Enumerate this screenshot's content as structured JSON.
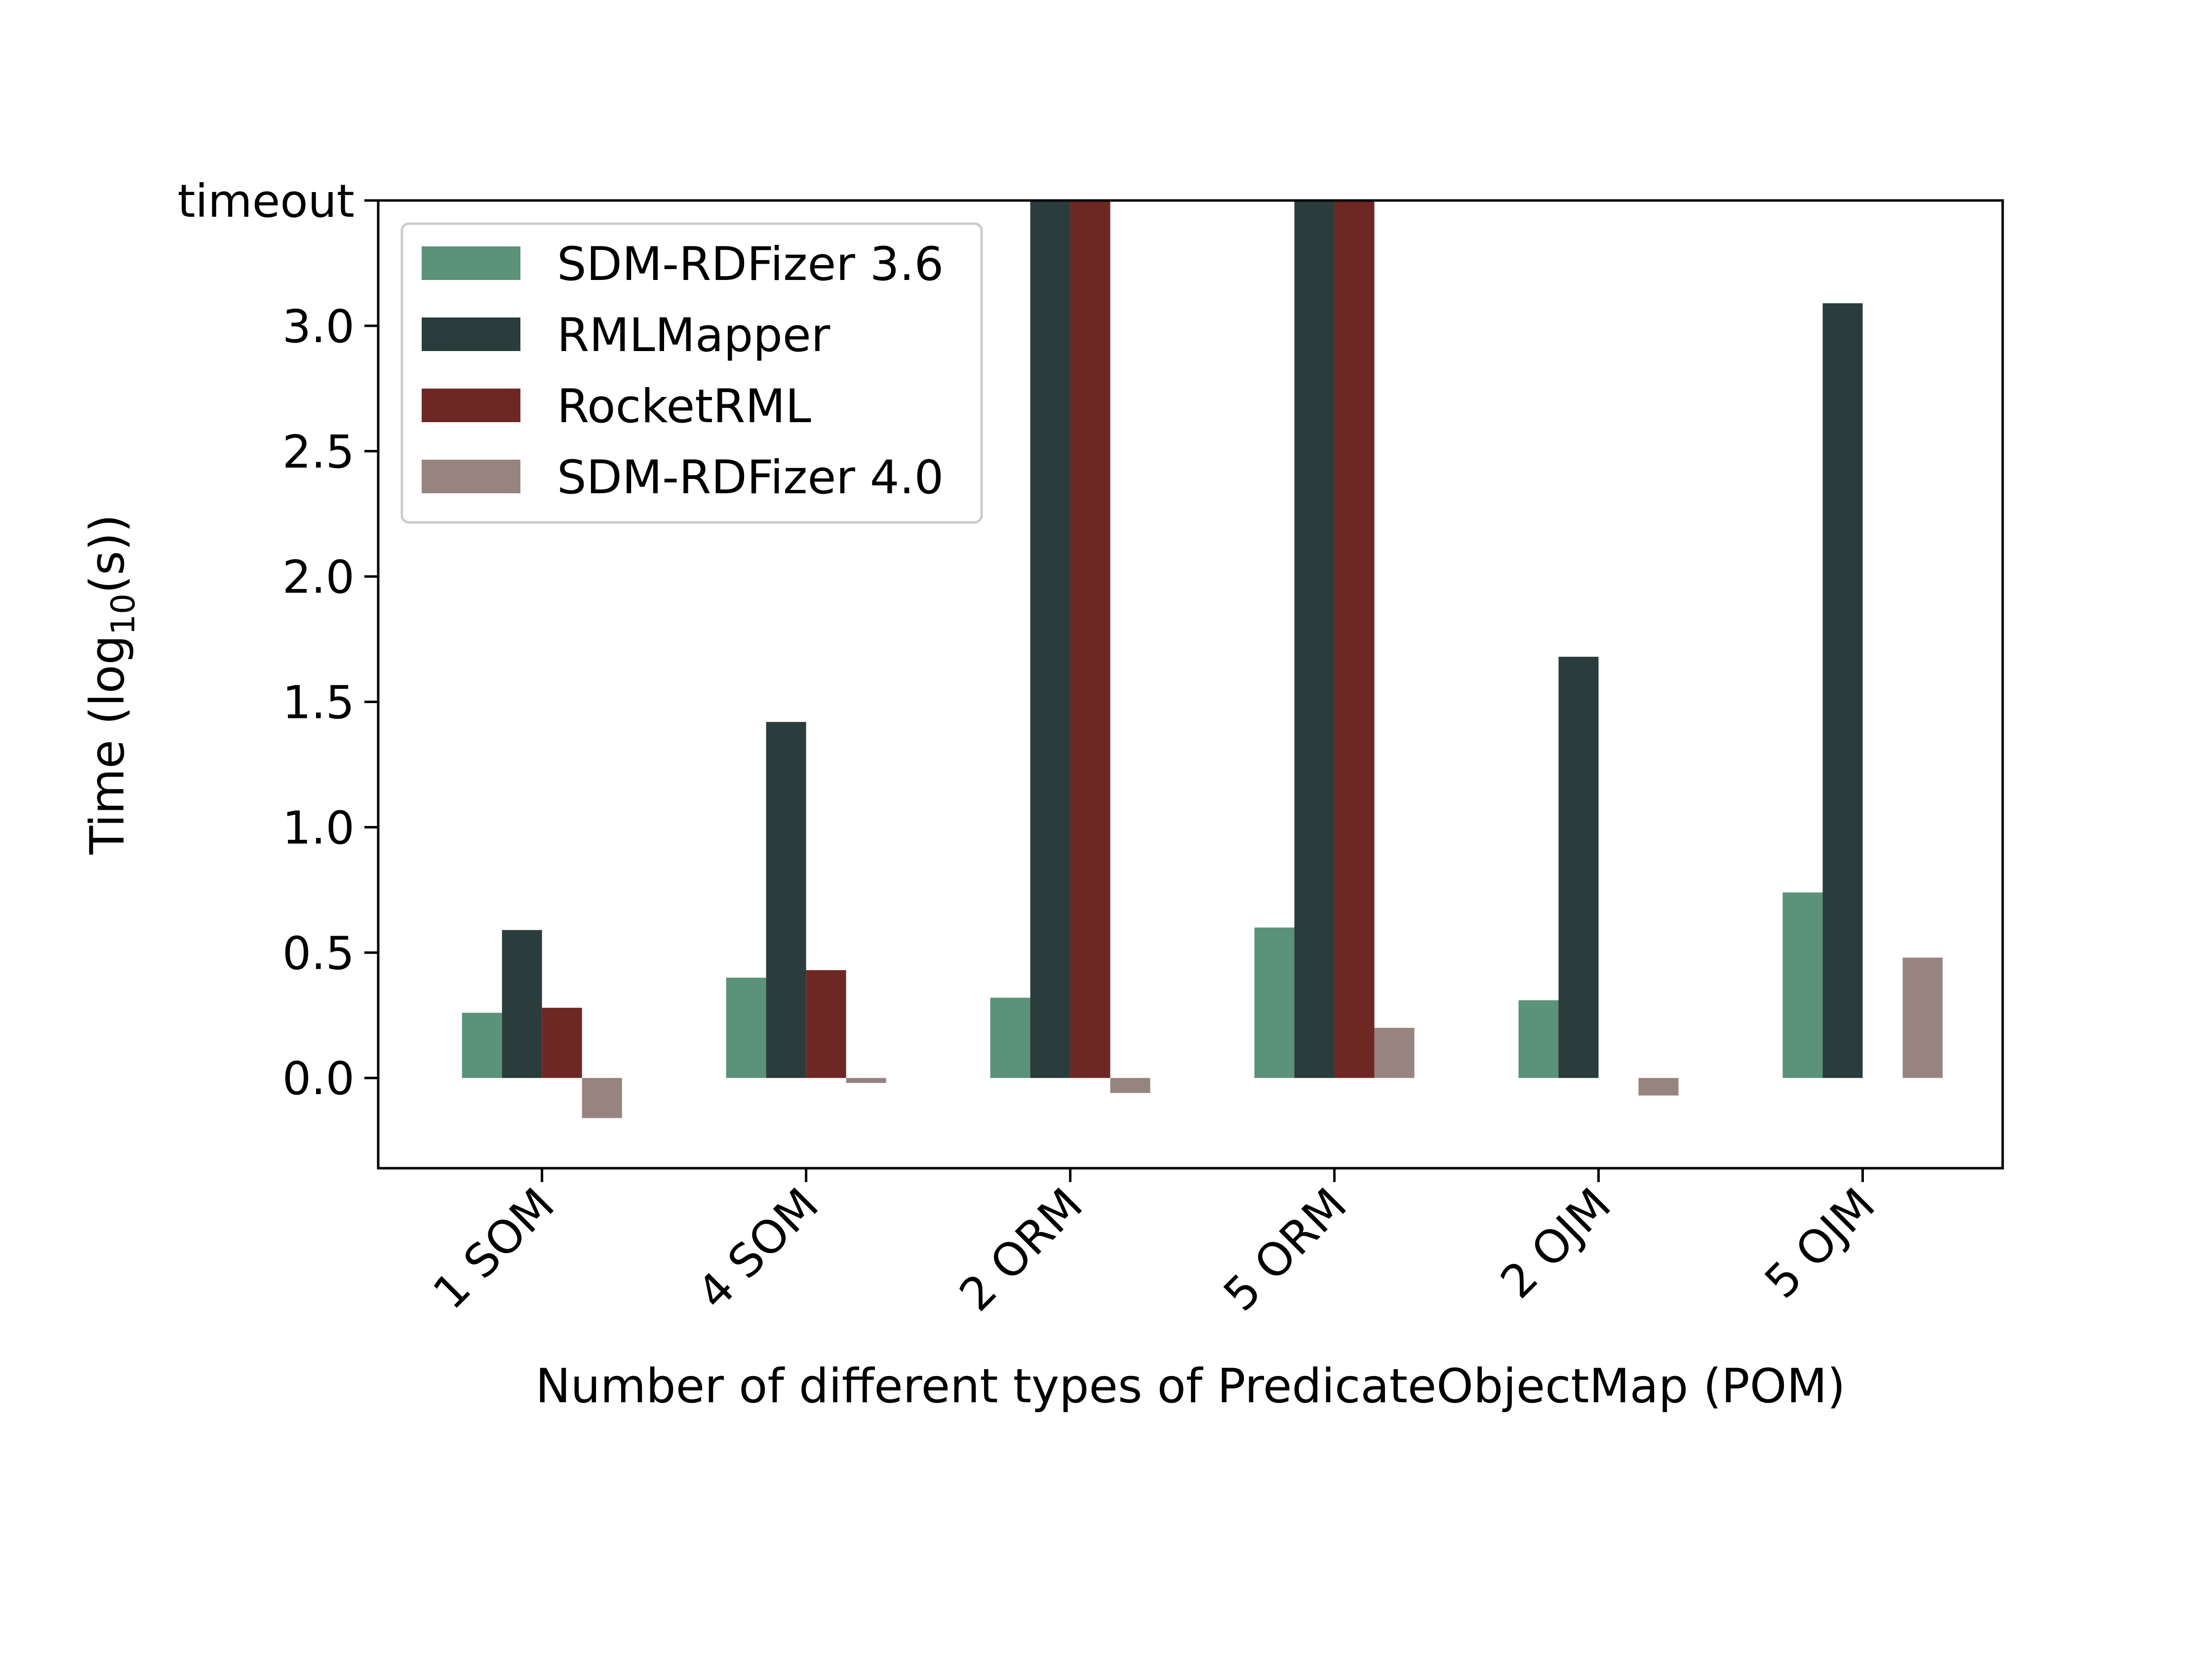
{
  "chart_data": {
    "type": "bar",
    "title": "",
    "xlabel": "Number of different types of PredicateObjectMap (POM)",
    "ylabel": {
      "prefix": "Time (log",
      "subscript": "10",
      "suffix": "(s))"
    },
    "categories": [
      "1 SOM",
      "4 SOM",
      "2 ORM",
      "5 ORM",
      "2 OJM",
      "5 OJM"
    ],
    "y_range": [
      -0.36,
      3.5
    ],
    "y_ticks": [
      {
        "value": 0.0,
        "label": "0.0"
      },
      {
        "value": 0.5,
        "label": "0.5"
      },
      {
        "value": 1.0,
        "label": "1.0"
      },
      {
        "value": 1.5,
        "label": "1.5"
      },
      {
        "value": 2.0,
        "label": "2.0"
      },
      {
        "value": 2.5,
        "label": "2.5"
      },
      {
        "value": 3.0,
        "label": "3.0"
      },
      {
        "value": 3.5,
        "label": "timeout"
      }
    ],
    "timeout_value": 3.5,
    "legend_position": "upper-left",
    "series": [
      {
        "name": "SDM-RDFizer 3.6",
        "color": "#5b927a",
        "values": [
          0.26,
          0.4,
          0.32,
          0.6,
          0.31,
          0.74
        ]
      },
      {
        "name": "RMLMapper",
        "color": "#2a3c3b",
        "values": [
          0.59,
          1.42,
          3.5,
          3.5,
          1.68,
          3.09
        ]
      },
      {
        "name": "RocketRML",
        "color": "#6e2823",
        "values": [
          0.28,
          0.43,
          3.5,
          3.5,
          null,
          null
        ]
      },
      {
        "name": "SDM-RDFizer 4.0",
        "color": "#978480",
        "values": [
          -0.16,
          -0.02,
          -0.06,
          0.2,
          -0.07,
          0.48
        ]
      }
    ]
  }
}
